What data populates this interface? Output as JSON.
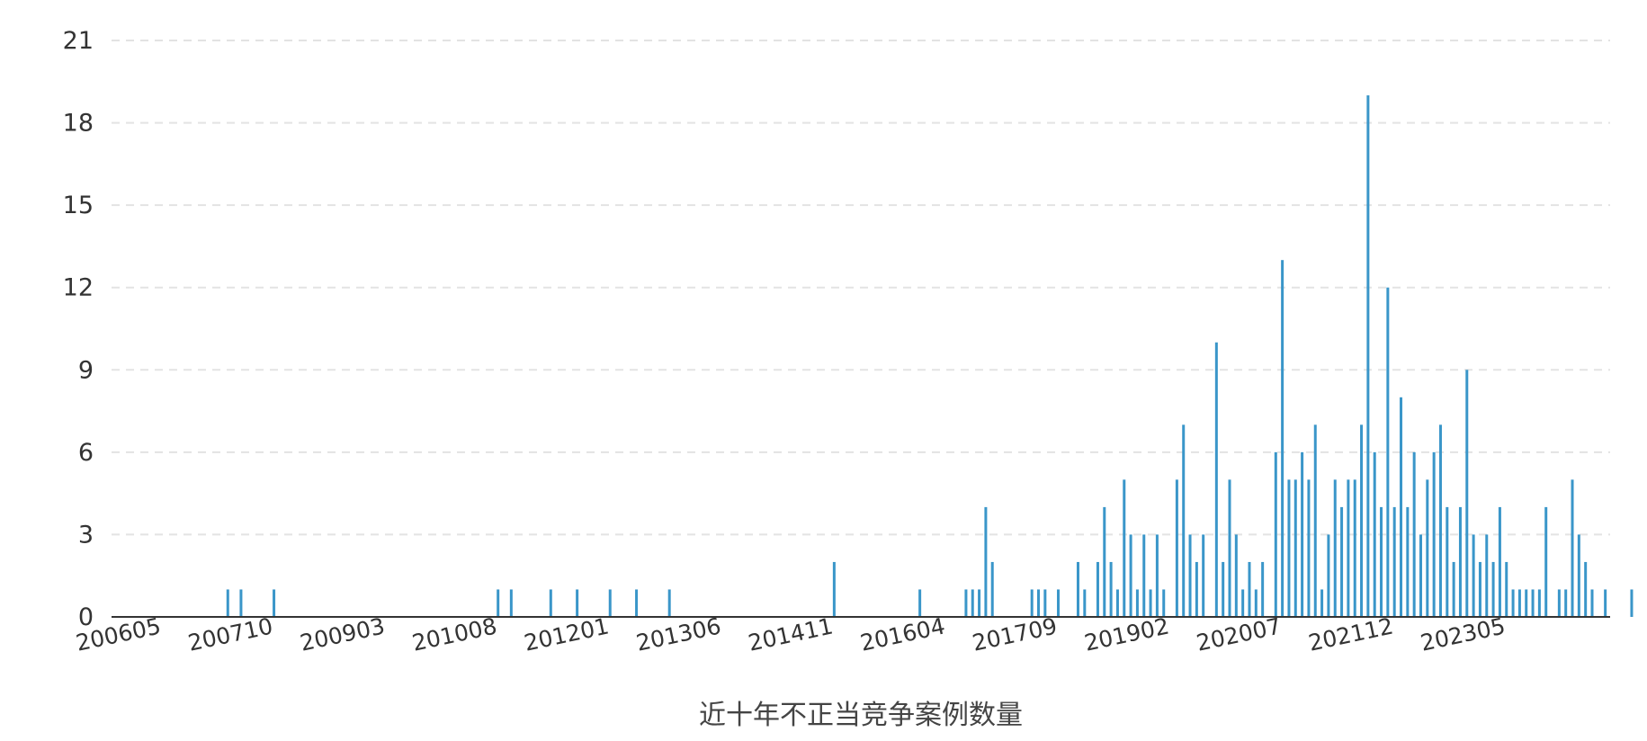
{
  "chart_data": {
    "type": "bar",
    "title": "近十年不正当竞争案例数量",
    "xlabel": "",
    "ylabel": "",
    "ylim": [
      0,
      21
    ],
    "y_ticks": [
      "0",
      "3",
      "6",
      "9",
      "12",
      "15",
      "18",
      "21"
    ],
    "x_tick_labels": [
      "200605",
      "200710",
      "200903",
      "201008",
      "201201",
      "201306",
      "201411",
      "201604",
      "201709",
      "201902",
      "202007",
      "202112",
      "202305"
    ],
    "x_range": [
      "200605",
      "202406"
    ],
    "grid": true,
    "color": "#3a96c9",
    "points": [
      {
        "x": "200703",
        "y": 1
      },
      {
        "x": "200705",
        "y": 1
      },
      {
        "x": "200710",
        "y": 1
      },
      {
        "x": "201008",
        "y": 1
      },
      {
        "x": "201010",
        "y": 1
      },
      {
        "x": "201104",
        "y": 1
      },
      {
        "x": "201108",
        "y": 1
      },
      {
        "x": "201201",
        "y": 1
      },
      {
        "x": "201205",
        "y": 1
      },
      {
        "x": "201210",
        "y": 1
      },
      {
        "x": "201411",
        "y": 2
      },
      {
        "x": "201512",
        "y": 1
      },
      {
        "x": "201607",
        "y": 1
      },
      {
        "x": "201608",
        "y": 1
      },
      {
        "x": "201609",
        "y": 1
      },
      {
        "x": "201610",
        "y": 4
      },
      {
        "x": "201611",
        "y": 2
      },
      {
        "x": "201705",
        "y": 1
      },
      {
        "x": "201706",
        "y": 1
      },
      {
        "x": "201707",
        "y": 1
      },
      {
        "x": "201709",
        "y": 1
      },
      {
        "x": "201712",
        "y": 2
      },
      {
        "x": "201801",
        "y": 1
      },
      {
        "x": "201803",
        "y": 2
      },
      {
        "x": "201804",
        "y": 4
      },
      {
        "x": "201805",
        "y": 2
      },
      {
        "x": "201806",
        "y": 1
      },
      {
        "x": "201807",
        "y": 5
      },
      {
        "x": "201808",
        "y": 3
      },
      {
        "x": "201809",
        "y": 1
      },
      {
        "x": "201810",
        "y": 3
      },
      {
        "x": "201811",
        "y": 1
      },
      {
        "x": "201812",
        "y": 3
      },
      {
        "x": "201901",
        "y": 1
      },
      {
        "x": "201903",
        "y": 5
      },
      {
        "x": "201904",
        "y": 7
      },
      {
        "x": "201905",
        "y": 3
      },
      {
        "x": "201906",
        "y": 2
      },
      {
        "x": "201907",
        "y": 3
      },
      {
        "x": "201909",
        "y": 10
      },
      {
        "x": "201910",
        "y": 2
      },
      {
        "x": "201911",
        "y": 5
      },
      {
        "x": "201912",
        "y": 3
      },
      {
        "x": "202001",
        "y": 1
      },
      {
        "x": "202002",
        "y": 2
      },
      {
        "x": "202003",
        "y": 1
      },
      {
        "x": "202004",
        "y": 2
      },
      {
        "x": "202006",
        "y": 6
      },
      {
        "x": "202007",
        "y": 13
      },
      {
        "x": "202008",
        "y": 5
      },
      {
        "x": "202009",
        "y": 5
      },
      {
        "x": "202010",
        "y": 6
      },
      {
        "x": "202011",
        "y": 5
      },
      {
        "x": "202012",
        "y": 7
      },
      {
        "x": "202101",
        "y": 1
      },
      {
        "x": "202102",
        "y": 3
      },
      {
        "x": "202103",
        "y": 5
      },
      {
        "x": "202104",
        "y": 4
      },
      {
        "x": "202105",
        "y": 5
      },
      {
        "x": "202106",
        "y": 5
      },
      {
        "x": "202107",
        "y": 7
      },
      {
        "x": "202108",
        "y": 19
      },
      {
        "x": "202109",
        "y": 6
      },
      {
        "x": "202110",
        "y": 4
      },
      {
        "x": "202111",
        "y": 12
      },
      {
        "x": "202112",
        "y": 4
      },
      {
        "x": "202201",
        "y": 8
      },
      {
        "x": "202202",
        "y": 4
      },
      {
        "x": "202203",
        "y": 6
      },
      {
        "x": "202204",
        "y": 3
      },
      {
        "x": "202205",
        "y": 5
      },
      {
        "x": "202206",
        "y": 6
      },
      {
        "x": "202207",
        "y": 7
      },
      {
        "x": "202208",
        "y": 4
      },
      {
        "x": "202209",
        "y": 2
      },
      {
        "x": "202210",
        "y": 4
      },
      {
        "x": "202211",
        "y": 9
      },
      {
        "x": "202212",
        "y": 3
      },
      {
        "x": "202301",
        "y": 2
      },
      {
        "x": "202302",
        "y": 3
      },
      {
        "x": "202303",
        "y": 2
      },
      {
        "x": "202304",
        "y": 4
      },
      {
        "x": "202305",
        "y": 2
      },
      {
        "x": "202306",
        "y": 1
      },
      {
        "x": "202307",
        "y": 1
      },
      {
        "x": "202308",
        "y": 1
      },
      {
        "x": "202309",
        "y": 1
      },
      {
        "x": "202310",
        "y": 1
      },
      {
        "x": "202311",
        "y": 4
      },
      {
        "x": "202401",
        "y": 1
      },
      {
        "x": "202402",
        "y": 1
      },
      {
        "x": "202403",
        "y": 5
      },
      {
        "x": "202404",
        "y": 3
      },
      {
        "x": "202405",
        "y": 2
      },
      {
        "x": "202406",
        "y": 1
      },
      {
        "x": "202408",
        "y": 1
      },
      {
        "x": "202412",
        "y": 1
      }
    ]
  }
}
